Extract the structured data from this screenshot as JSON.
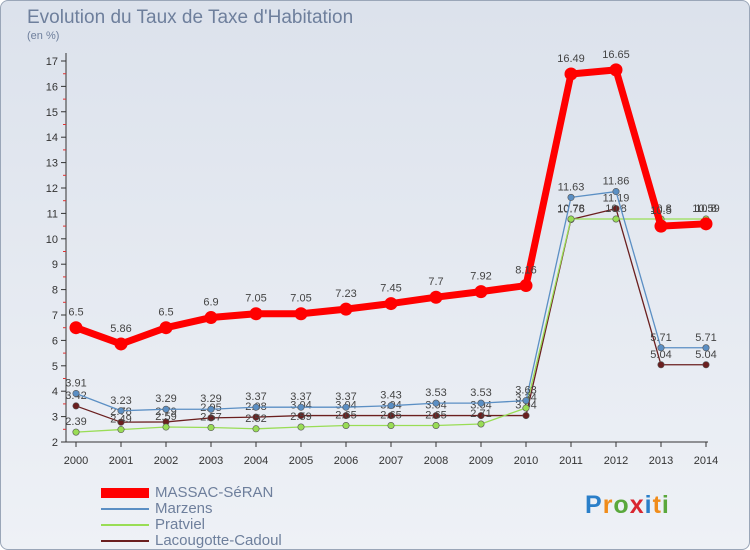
{
  "title": "Evolution du Taux de Taxe d'Habitation",
  "subtitle": "(en %)",
  "logo": "Proxiti",
  "chart_data": {
    "type": "line",
    "x": [
      "2000",
      "2001",
      "2002",
      "2003",
      "2004",
      "2005",
      "2006",
      "2007",
      "2008",
      "2009",
      "2010",
      "2011",
      "2012",
      "2013",
      "2014"
    ],
    "ylim": [
      2,
      17
    ],
    "yticks": [
      2,
      3,
      4,
      5,
      6,
      7,
      8,
      9,
      10,
      11,
      12,
      13,
      14,
      15,
      16,
      17
    ],
    "grid": false,
    "legend_position": "bottom-left",
    "series": [
      {
        "name": "MASSAC-SéRAN",
        "color": "#ff0000",
        "values": [
          6.5,
          5.86,
          6.5,
          6.9,
          7.05,
          7.05,
          7.23,
          7.45,
          7.7,
          7.92,
          8.16,
          16.49,
          16.65,
          10.5,
          10.59
        ],
        "labels": [
          "6.5",
          "5.86",
          "6.5",
          "6.9",
          "7.05",
          "7.05",
          "7.23",
          "7.45",
          "7.7",
          "7.92",
          "8.16",
          "16.49",
          "16.65",
          "10.5",
          "10.59"
        ]
      },
      {
        "name": "Marzens",
        "color": "#5b8fc4",
        "values": [
          3.91,
          3.23,
          3.29,
          3.29,
          3.37,
          3.37,
          3.37,
          3.43,
          3.53,
          3.53,
          3.63,
          11.63,
          11.86,
          5.71,
          5.71
        ],
        "labels": [
          "3.91",
          "3.23",
          "3.29",
          "3.29",
          "3.37",
          "3.37",
          "3.37",
          "3.43",
          "3.53",
          "3.53",
          "3.63",
          "11.63",
          "11.86",
          "5.71",
          "5.71"
        ]
      },
      {
        "name": "Pratviel",
        "color": "#99dd55",
        "values": [
          2.39,
          2.49,
          2.59,
          2.57,
          2.52,
          2.59,
          2.65,
          2.65,
          2.65,
          2.71,
          3.34,
          10.78,
          10.78,
          10.78,
          10.78
        ],
        "labels": [
          "2.39",
          "2.49",
          "2.59",
          "2.57",
          "2.52",
          "2.59",
          "2.65",
          "2.65",
          "2.65",
          "2.71",
          "3.34",
          "10.78",
          "10.8",
          "10.8",
          "10.8"
        ]
      },
      {
        "name": "Lacougotte-Cadoul",
        "color": "#6b1f1f",
        "values": [
          3.42,
          2.78,
          2.79,
          2.95,
          2.98,
          3.04,
          3.04,
          3.04,
          3.04,
          3.04,
          3.04,
          10.76,
          11.19,
          5.04,
          5.04
        ],
        "labels": [
          "3.42",
          "2.78",
          "2.79",
          "2.95",
          "2.98",
          "3.04",
          "3.04",
          "3.04",
          "3.04",
          "3.04",
          "3.04",
          "10.76",
          "11.19",
          "5.04",
          "5.04"
        ]
      }
    ]
  }
}
